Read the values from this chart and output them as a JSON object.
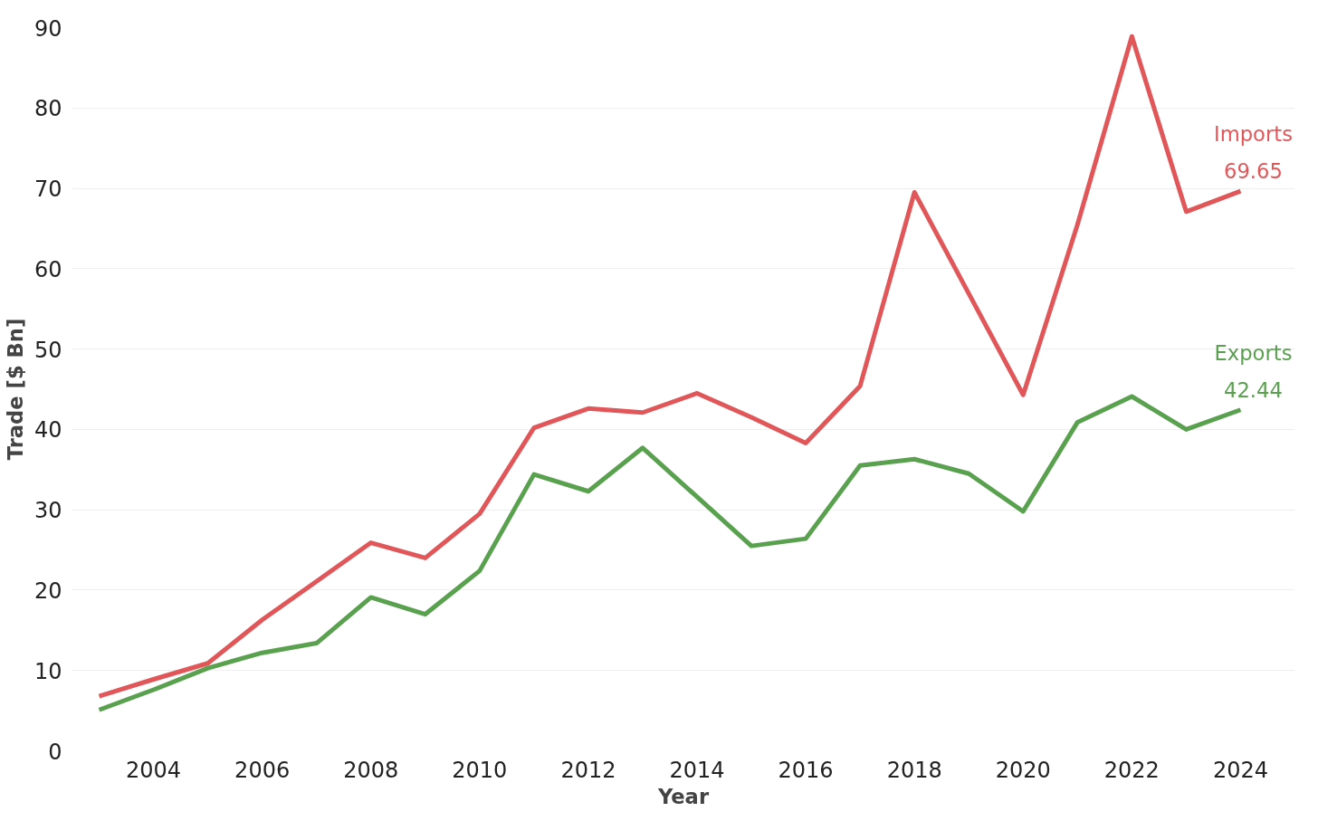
{
  "chart_data": {
    "type": "line",
    "xlabel": "Year",
    "ylabel": "Trade [$ Bn]",
    "x": [
      2003,
      2004,
      2005,
      2006,
      2007,
      2008,
      2009,
      2010,
      2011,
      2012,
      2013,
      2014,
      2015,
      2016,
      2017,
      2018,
      2019,
      2020,
      2021,
      2022,
      2023,
      2024
    ],
    "series": [
      {
        "name": "Imports",
        "color": "#e15759",
        "values": [
          6.8,
          8.9,
          10.9,
          16.3,
          21.1,
          25.9,
          24.0,
          29.5,
          40.2,
          42.6,
          42.1,
          44.5,
          41.5,
          38.3,
          45.4,
          69.5,
          56.9,
          44.3,
          65.5,
          88.9,
          67.1,
          69.65
        ],
        "value_labels": [
          null,
          null,
          null,
          null,
          null,
          null,
          null,
          null,
          null,
          null,
          null,
          null,
          null,
          null,
          null,
          null,
          null,
          null,
          null,
          null,
          null,
          "69.65"
        ]
      },
      {
        "name": "Exports",
        "color": "#59a14f",
        "values": [
          5.1,
          7.6,
          10.3,
          12.2,
          13.4,
          19.1,
          17.0,
          22.4,
          34.4,
          32.3,
          37.7,
          31.6,
          25.5,
          26.4,
          35.5,
          36.3,
          34.5,
          29.8,
          40.9,
          44.1,
          40.0,
          42.44
        ],
        "value_labels": [
          null,
          null,
          null,
          null,
          null,
          null,
          null,
          null,
          null,
          null,
          null,
          null,
          null,
          null,
          null,
          null,
          null,
          null,
          null,
          null,
          null,
          "42.44"
        ]
      }
    ],
    "xlim": [
      2002.5,
      2025.0
    ],
    "xticks": [
      2004,
      2006,
      2008,
      2010,
      2012,
      2014,
      2016,
      2018,
      2020,
      2022,
      2024
    ],
    "ylim": [
      0,
      90
    ],
    "yticks": [
      0,
      10,
      20,
      30,
      40,
      50,
      60,
      70,
      80,
      90
    ],
    "grid": "y",
    "marker": "none",
    "line_style": "solid"
  }
}
